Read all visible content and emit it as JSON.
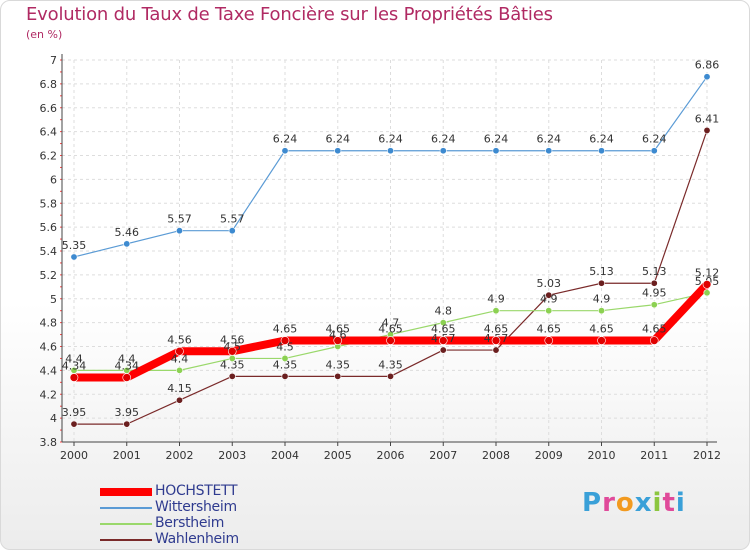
{
  "title": "Evolution du Taux de Taxe Foncière sur les Propriétés Bâties",
  "subtitle": "(en %)",
  "logo": {
    "text": "Proxiti",
    "colors": [
      "#3aa0d8",
      "#e04a9a",
      "#f29a1f",
      "#3aa0d8",
      "#8cc63f",
      "#e04a9a",
      "#3aa0d8"
    ]
  },
  "legend": [
    {
      "name": "HOCHSTETT",
      "color": "#ff0000",
      "thick": true
    },
    {
      "name": "Wittersheim",
      "color": "#5b9bd5",
      "thick": false
    },
    {
      "name": "Berstheim",
      "color": "#9ad86b",
      "thick": false
    },
    {
      "name": "Wahlenheim",
      "color": "#7a2a2a",
      "thick": false
    }
  ],
  "chart_data": {
    "type": "line",
    "title": "Evolution du Taux de Taxe Foncière sur les Propriétés Bâties",
    "ylabel": "(en %)",
    "xlabel": "",
    "ylim": [
      3.8,
      7.0
    ],
    "yticks": [
      "3.8",
      "4",
      "4.2",
      "4.4",
      "4.6",
      "4.8",
      "5",
      "5.2",
      "5.4",
      "5.6",
      "5.8",
      "6",
      "6.2",
      "6.4",
      "6.6",
      "6.8",
      "7"
    ],
    "categories": [
      "2000",
      "2001",
      "2002",
      "2003",
      "2004",
      "2005",
      "2006",
      "2007",
      "2008",
      "2009",
      "2010",
      "2011",
      "2012"
    ],
    "series": [
      {
        "name": "Wahlenheim",
        "color": "#7a2a2a",
        "marker": "#6b1f1f",
        "width": 1.2,
        "values": [
          3.95,
          3.95,
          4.15,
          4.35,
          4.35,
          4.35,
          4.35,
          4.57,
          4.57,
          5.03,
          5.13,
          5.13,
          6.41
        ],
        "labels": [
          "3.95",
          "3.95",
          "4.15",
          "4.35",
          "4.35",
          "4.35",
          "4.35",
          "4.57",
          "4.57",
          "5.03",
          "5.13",
          "5.13",
          "6.41"
        ]
      },
      {
        "name": "Berstheim",
        "color": "#9ad86b",
        "marker": "#8cd152",
        "width": 1.2,
        "values": [
          4.4,
          4.4,
          4.4,
          4.5,
          4.5,
          4.6,
          4.7,
          4.8,
          4.9,
          4.9,
          4.9,
          4.95,
          5.05
        ],
        "labels": [
          "4.4",
          "4.4",
          "4.4",
          "4.5",
          "4.5",
          "4.6",
          "4.7",
          "4.8",
          "4.9",
          "4.9",
          "4.9",
          "4.95",
          "5.05"
        ]
      },
      {
        "name": "Wittersheim",
        "color": "#5b9bd5",
        "marker": "#3d8ad0",
        "width": 1.2,
        "values": [
          5.35,
          5.46,
          5.57,
          5.57,
          6.24,
          6.24,
          6.24,
          6.24,
          6.24,
          6.24,
          6.24,
          6.24,
          6.86
        ],
        "labels": [
          "5.35",
          "5.46",
          "5.57",
          "5.57",
          "6.24",
          "6.24",
          "6.24",
          "6.24",
          "6.24",
          "6.24",
          "6.24",
          "6.24",
          "6.86"
        ]
      },
      {
        "name": "HOCHSTETT",
        "color": "#ff0000",
        "marker": "#e00000",
        "width": 8,
        "values": [
          4.34,
          4.34,
          4.56,
          4.56,
          4.65,
          4.65,
          4.65,
          4.65,
          4.65,
          4.65,
          4.65,
          4.65,
          5.12
        ],
        "labels": [
          "4.34",
          "4.34",
          "4.56",
          "4.56",
          "4.65",
          "4.65",
          "4.65",
          "4.65",
          "4.65",
          "4.65",
          "4.65",
          "4.65",
          "5.12"
        ]
      }
    ]
  }
}
